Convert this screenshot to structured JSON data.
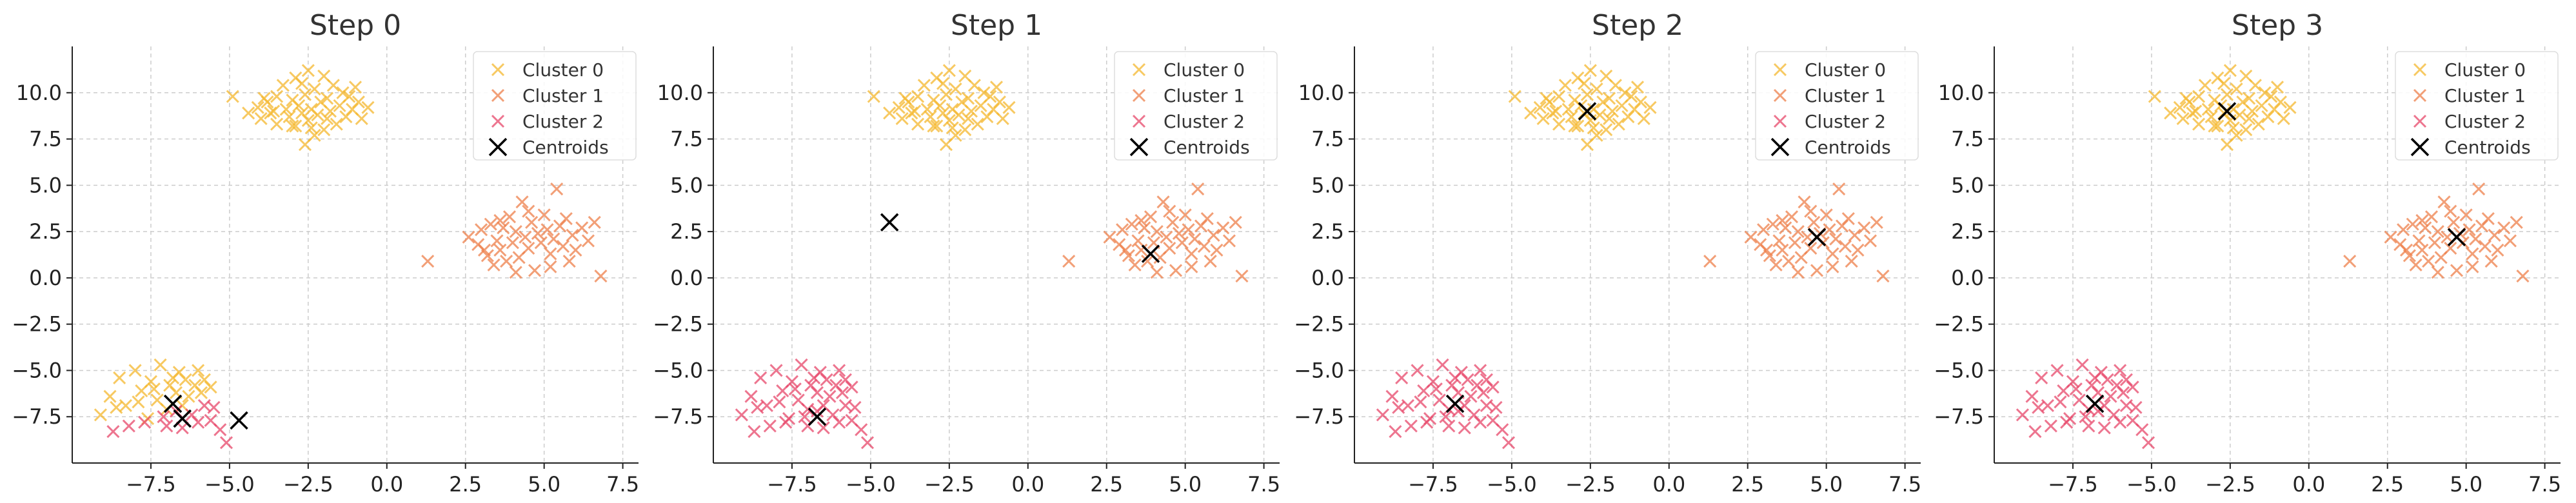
{
  "figure": {
    "colors": {
      "cluster0": "#F5B82E",
      "cluster1": "#EE7F4A",
      "cluster2": "#E8476A",
      "centroid": "#000000",
      "grid": "#CCCCCC",
      "axis": "#222222"
    }
  },
  "chart_data": [
    {
      "type": "scatter",
      "title": "Step 0",
      "xlim": [
        -10,
        8
      ],
      "ylim": [
        -10,
        12.5
      ],
      "xticks": [
        -7.5,
        -5.0,
        -2.5,
        0.0,
        2.5,
        5.0,
        7.5
      ],
      "yticks": [
        -7.5,
        -5.0,
        -2.5,
        0.0,
        2.5,
        5.0,
        7.5,
        10.0
      ],
      "xtick_labels": [
        "−7.5",
        "−5.0",
        "−2.5",
        "0.0",
        "2.5",
        "5.0",
        "7.5"
      ],
      "ytick_labels": [
        "−7.5",
        "−5.0",
        "−2.5",
        "0.0",
        "2.5",
        "5.0",
        "7.5",
        "10.0"
      ],
      "grid": true,
      "legend": {
        "position": "top-right",
        "entries": [
          "Cluster 0",
          "Cluster 1",
          "Cluster 2",
          "Centroids"
        ]
      },
      "series": [
        {
          "name": "Cluster 0",
          "point_set": "blob_top"
        },
        {
          "name": "Cluster 0",
          "point_set": "blob_bottom_left_majority"
        },
        {
          "name": "Cluster 1",
          "point_set": "blob_right"
        },
        {
          "name": "Cluster 2",
          "point_set": "blob_bottom_left_minority"
        }
      ],
      "centroids": [
        [
          -6.8,
          -6.8
        ],
        [
          -6.5,
          -7.6
        ],
        [
          -4.7,
          -7.7
        ]
      ]
    },
    {
      "type": "scatter",
      "title": "Step 1",
      "xlim": [
        -10,
        8
      ],
      "ylim": [
        -10,
        12.5
      ],
      "xticks": [
        -7.5,
        -5.0,
        -2.5,
        0.0,
        2.5,
        5.0,
        7.5
      ],
      "yticks": [
        -7.5,
        -5.0,
        -2.5,
        0.0,
        2.5,
        5.0,
        7.5,
        10.0
      ],
      "xtick_labels": [
        "−7.5",
        "−5.0",
        "−2.5",
        "0.0",
        "2.5",
        "5.0",
        "7.5"
      ],
      "ytick_labels": [
        "−7.5",
        "−5.0",
        "−2.5",
        "0.0",
        "2.5",
        "5.0",
        "7.5",
        "10.0"
      ],
      "grid": true,
      "legend": {
        "position": "top-right",
        "entries": [
          "Cluster 0",
          "Cluster 1",
          "Cluster 2",
          "Centroids"
        ]
      },
      "series": [
        {
          "name": "Cluster 0",
          "point_set": "blob_top"
        },
        {
          "name": "Cluster 1",
          "point_set": "blob_right"
        },
        {
          "name": "Cluster 2",
          "point_set": "blob_bottom_left_all"
        }
      ],
      "centroids": [
        [
          -4.4,
          3.0
        ],
        [
          3.9,
          1.3
        ],
        [
          -6.7,
          -7.5
        ]
      ]
    },
    {
      "type": "scatter",
      "title": "Step 2",
      "xlim": [
        -10,
        8
      ],
      "ylim": [
        -10,
        12.5
      ],
      "xticks": [
        -7.5,
        -5.0,
        -2.5,
        0.0,
        2.5,
        5.0,
        7.5
      ],
      "yticks": [
        -7.5,
        -5.0,
        -2.5,
        0.0,
        2.5,
        5.0,
        7.5,
        10.0
      ],
      "xtick_labels": [
        "−7.5",
        "−5.0",
        "−2.5",
        "0.0",
        "2.5",
        "5.0",
        "7.5"
      ],
      "ytick_labels": [
        "−7.5",
        "−5.0",
        "−2.5",
        "0.0",
        "2.5",
        "5.0",
        "7.5",
        "10.0"
      ],
      "grid": true,
      "legend": {
        "position": "top-right",
        "entries": [
          "Cluster 0",
          "Cluster 1",
          "Cluster 2",
          "Centroids"
        ]
      },
      "series": [
        {
          "name": "Cluster 0",
          "point_set": "blob_top"
        },
        {
          "name": "Cluster 1",
          "point_set": "blob_right"
        },
        {
          "name": "Cluster 2",
          "point_set": "blob_bottom_left_all"
        }
      ],
      "centroids": [
        [
          -2.6,
          9.0
        ],
        [
          4.7,
          2.2
        ],
        [
          -6.8,
          -6.8
        ]
      ]
    },
    {
      "type": "scatter",
      "title": "Step 3",
      "xlim": [
        -10,
        8
      ],
      "ylim": [
        -10,
        12.5
      ],
      "xticks": [
        -7.5,
        -5.0,
        -2.5,
        0.0,
        2.5,
        5.0,
        7.5
      ],
      "yticks": [
        -7.5,
        -5.0,
        -2.5,
        0.0,
        2.5,
        5.0,
        7.5,
        10.0
      ],
      "xtick_labels": [
        "−7.5",
        "−5.0",
        "−2.5",
        "0.0",
        "2.5",
        "5.0",
        "7.5"
      ],
      "ytick_labels": [
        "−7.5",
        "−5.0",
        "−2.5",
        "0.0",
        "2.5",
        "5.0",
        "7.5",
        "10.0"
      ],
      "grid": true,
      "legend": {
        "position": "top-right",
        "entries": [
          "Cluster 0",
          "Cluster 1",
          "Cluster 2",
          "Centroids"
        ]
      },
      "series": [
        {
          "name": "Cluster 0",
          "point_set": "blob_top"
        },
        {
          "name": "Cluster 1",
          "point_set": "blob_right"
        },
        {
          "name": "Cluster 2",
          "point_set": "blob_bottom_left_all"
        }
      ],
      "centroids": [
        [
          -2.6,
          9.0
        ],
        [
          4.7,
          2.2
        ],
        [
          -6.8,
          -6.8
        ]
      ]
    }
  ],
  "point_sets": {
    "blob_top": [
      [
        -4.9,
        9.8
      ],
      [
        -4.4,
        8.9
      ],
      [
        -4.1,
        9.2
      ],
      [
        -4.0,
        8.6
      ],
      [
        -3.8,
        9.5
      ],
      [
        -3.7,
        8.9
      ],
      [
        -3.5,
        9.8
      ],
      [
        -3.5,
        8.3
      ],
      [
        -3.3,
        10.4
      ],
      [
        -3.2,
        9.1
      ],
      [
        -3.1,
        8.7
      ],
      [
        -3.0,
        9.6
      ],
      [
        -2.9,
        10.8
      ],
      [
        -2.9,
        8.2
      ],
      [
        -2.8,
        9.3
      ],
      [
        -2.7,
        8.9
      ],
      [
        -2.6,
        9.9
      ],
      [
        -2.5,
        8.5
      ],
      [
        -2.5,
        11.2
      ],
      [
        -2.4,
        9.1
      ],
      [
        -2.3,
        10.2
      ],
      [
        -2.3,
        7.7
      ],
      [
        -2.2,
        8.8
      ],
      [
        -2.1,
        9.5
      ],
      [
        -2.0,
        10.9
      ],
      [
        -2.0,
        8.0
      ],
      [
        -1.9,
        9.7
      ],
      [
        -1.8,
        9.0
      ],
      [
        -1.7,
        10.4
      ],
      [
        -1.6,
        8.3
      ],
      [
        -1.5,
        9.3
      ],
      [
        -1.4,
        10.0
      ],
      [
        -1.3,
        8.7
      ],
      [
        -1.2,
        9.8
      ],
      [
        -1.1,
        9.1
      ],
      [
        -1.0,
        10.3
      ],
      [
        -0.9,
        9.5
      ],
      [
        -0.8,
        8.6
      ],
      [
        -0.6,
        9.2
      ],
      [
        -2.6,
        7.2
      ],
      [
        -3.6,
        9.0
      ],
      [
        -3.0,
        8.2
      ],
      [
        -2.7,
        10.5
      ],
      [
        -3.9,
        9.7
      ],
      [
        -2.4,
        8.1
      ],
      [
        -1.9,
        8.6
      ]
    ],
    "blob_right": [
      [
        1.3,
        0.9
      ],
      [
        2.6,
        2.2
      ],
      [
        2.9,
        1.8
      ],
      [
        3.0,
        2.6
      ],
      [
        3.2,
        1.2
      ],
      [
        3.3,
        2.9
      ],
      [
        3.4,
        0.7
      ],
      [
        3.5,
        2.0
      ],
      [
        3.6,
        1.5
      ],
      [
        3.7,
        2.7
      ],
      [
        3.8,
        0.9
      ],
      [
        3.9,
        3.3
      ],
      [
        4.0,
        1.9
      ],
      [
        4.1,
        2.5
      ],
      [
        4.2,
        1.1
      ],
      [
        4.3,
        4.1
      ],
      [
        4.4,
        2.2
      ],
      [
        4.5,
        1.6
      ],
      [
        4.6,
        3.0
      ],
      [
        4.7,
        0.4
      ],
      [
        4.8,
        2.4
      ],
      [
        4.9,
        1.9
      ],
      [
        5.0,
        3.4
      ],
      [
        5.1,
        2.6
      ],
      [
        5.2,
        1.3
      ],
      [
        5.3,
        2.1
      ],
      [
        5.4,
        4.8
      ],
      [
        5.5,
        2.8
      ],
      [
        5.6,
        1.7
      ],
      [
        5.7,
        3.2
      ],
      [
        5.8,
        0.9
      ],
      [
        5.9,
        2.3
      ],
      [
        6.0,
        1.5
      ],
      [
        6.2,
        2.7
      ],
      [
        6.4,
        2.0
      ],
      [
        6.6,
        3.0
      ],
      [
        6.8,
        0.1
      ],
      [
        4.1,
        0.3
      ],
      [
        3.1,
        1.5
      ],
      [
        4.5,
        3.6
      ],
      [
        5.2,
        0.6
      ],
      [
        3.6,
        3.1
      ]
    ],
    "blob_bottom_left_majority": [
      [
        -9.1,
        -7.4
      ],
      [
        -8.8,
        -6.4
      ],
      [
        -8.5,
        -5.4
      ],
      [
        -8.3,
        -6.9
      ],
      [
        -8.0,
        -5.0
      ],
      [
        -7.8,
        -6.1
      ],
      [
        -7.6,
        -7.6
      ],
      [
        -7.5,
        -5.6
      ],
      [
        -7.3,
        -6.6
      ],
      [
        -7.2,
        -4.7
      ],
      [
        -7.0,
        -7.1
      ],
      [
        -6.9,
        -5.8
      ],
      [
        -6.7,
        -6.2
      ],
      [
        -6.6,
        -5.1
      ],
      [
        -6.5,
        -6.9
      ],
      [
        -6.4,
        -5.5
      ],
      [
        -6.3,
        -6.4
      ],
      [
        -6.1,
        -5.8
      ],
      [
        -6.0,
        -5.0
      ],
      [
        -5.9,
        -6.2
      ],
      [
        -5.8,
        -5.5
      ],
      [
        -5.6,
        -5.9
      ],
      [
        -7.9,
        -6.7
      ],
      [
        -7.4,
        -6.0
      ],
      [
        -8.6,
        -7.0
      ],
      [
        -6.8,
        -5.4
      ]
    ],
    "blob_bottom_left_minority": [
      [
        -8.7,
        -8.3
      ],
      [
        -8.2,
        -8.0
      ],
      [
        -7.7,
        -7.8
      ],
      [
        -7.1,
        -7.5
      ],
      [
        -6.7,
        -7.2
      ],
      [
        -6.2,
        -7.4
      ],
      [
        -5.8,
        -6.9
      ],
      [
        -5.6,
        -7.7
      ],
      [
        -5.5,
        -7.0
      ],
      [
        -5.3,
        -8.2
      ],
      [
        -5.1,
        -8.9
      ],
      [
        -6.5,
        -8.1
      ],
      [
        -7.0,
        -8.0
      ],
      [
        -6.0,
        -7.8
      ]
    ],
    "blob_bottom_left_all": [
      [
        -9.1,
        -7.4
      ],
      [
        -8.8,
        -6.4
      ],
      [
        -8.5,
        -5.4
      ],
      [
        -8.3,
        -6.9
      ],
      [
        -8.0,
        -5.0
      ],
      [
        -7.8,
        -6.1
      ],
      [
        -7.6,
        -7.6
      ],
      [
        -7.5,
        -5.6
      ],
      [
        -7.3,
        -6.6
      ],
      [
        -7.2,
        -4.7
      ],
      [
        -7.0,
        -7.1
      ],
      [
        -6.9,
        -5.8
      ],
      [
        -6.7,
        -6.2
      ],
      [
        -6.6,
        -5.1
      ],
      [
        -6.5,
        -6.9
      ],
      [
        -6.4,
        -5.5
      ],
      [
        -6.3,
        -6.4
      ],
      [
        -6.1,
        -5.8
      ],
      [
        -6.0,
        -5.0
      ],
      [
        -5.9,
        -6.2
      ],
      [
        -5.8,
        -5.5
      ],
      [
        -5.6,
        -5.9
      ],
      [
        -7.9,
        -6.7
      ],
      [
        -7.4,
        -6.0
      ],
      [
        -8.6,
        -7.0
      ],
      [
        -6.8,
        -5.4
      ],
      [
        -8.7,
        -8.3
      ],
      [
        -8.2,
        -8.0
      ],
      [
        -7.7,
        -7.8
      ],
      [
        -7.1,
        -7.5
      ],
      [
        -6.7,
        -7.2
      ],
      [
        -6.2,
        -7.4
      ],
      [
        -5.8,
        -6.9
      ],
      [
        -5.6,
        -7.7
      ],
      [
        -5.5,
        -7.0
      ],
      [
        -5.3,
        -8.2
      ],
      [
        -5.1,
        -8.9
      ],
      [
        -6.5,
        -8.1
      ],
      [
        -7.0,
        -8.0
      ],
      [
        -6.0,
        -7.8
      ]
    ]
  }
}
